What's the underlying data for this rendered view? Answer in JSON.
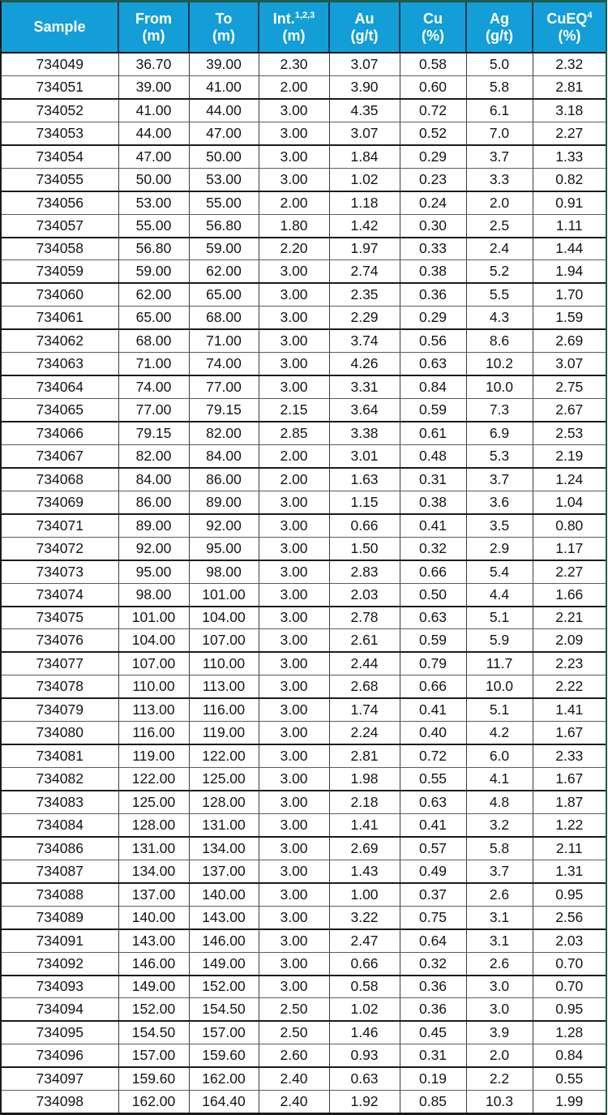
{
  "colors": {
    "header_bg": "#149ED8",
    "header_text": "#FFFFFF",
    "outer_border_top_right": "#1F5B46",
    "outer_border_bottom_left": "#1A1A1A",
    "grid_line": "#3C3C3C",
    "body_text": "#141414"
  },
  "chart_data": {
    "type": "table",
    "columns": [
      {
        "key": "sample",
        "label": "Sample",
        "sup": "",
        "unit": ""
      },
      {
        "key": "from-m",
        "label": "From",
        "sup": "",
        "unit": "(m)"
      },
      {
        "key": "to-m",
        "label": "To",
        "sup": "",
        "unit": "(m)"
      },
      {
        "key": "int-m",
        "label": "Int.",
        "sup": "1,2,3",
        "unit": "(m)"
      },
      {
        "key": "au-gpt",
        "label": "Au",
        "sup": "",
        "unit": "(g/t)"
      },
      {
        "key": "cu-pct",
        "label": "Cu",
        "sup": "",
        "unit": "(%)"
      },
      {
        "key": "ag-gpt",
        "label": "Ag",
        "sup": "",
        "unit": "(g/t)"
      },
      {
        "key": "cueq-pct",
        "label": "CuEQ",
        "sup": "4",
        "unit": "(%)"
      }
    ],
    "rows": [
      [
        "734049",
        "36.70",
        "39.00",
        "2.30",
        "3.07",
        "0.58",
        "5.0",
        "2.32"
      ],
      [
        "734051",
        "39.00",
        "41.00",
        "2.00",
        "3.90",
        "0.60",
        "5.8",
        "2.81"
      ],
      [
        "734052",
        "41.00",
        "44.00",
        "3.00",
        "4.35",
        "0.72",
        "6.1",
        "3.18"
      ],
      [
        "734053",
        "44.00",
        "47.00",
        "3.00",
        "3.07",
        "0.52",
        "7.0",
        "2.27"
      ],
      [
        "734054",
        "47.00",
        "50.00",
        "3.00",
        "1.84",
        "0.29",
        "3.7",
        "1.33"
      ],
      [
        "734055",
        "50.00",
        "53.00",
        "3.00",
        "1.02",
        "0.23",
        "3.3",
        "0.82"
      ],
      [
        "734056",
        "53.00",
        "55.00",
        "2.00",
        "1.18",
        "0.24",
        "2.0",
        "0.91"
      ],
      [
        "734057",
        "55.00",
        "56.80",
        "1.80",
        "1.42",
        "0.30",
        "2.5",
        "1.11"
      ],
      [
        "734058",
        "56.80",
        "59.00",
        "2.20",
        "1.97",
        "0.33",
        "2.4",
        "1.44"
      ],
      [
        "734059",
        "59.00",
        "62.00",
        "3.00",
        "2.74",
        "0.38",
        "5.2",
        "1.94"
      ],
      [
        "734060",
        "62.00",
        "65.00",
        "3.00",
        "2.35",
        "0.36",
        "5.5",
        "1.70"
      ],
      [
        "734061",
        "65.00",
        "68.00",
        "3.00",
        "2.29",
        "0.29",
        "4.3",
        "1.59"
      ],
      [
        "734062",
        "68.00",
        "71.00",
        "3.00",
        "3.74",
        "0.56",
        "8.6",
        "2.69"
      ],
      [
        "734063",
        "71.00",
        "74.00",
        "3.00",
        "4.26",
        "0.63",
        "10.2",
        "3.07"
      ],
      [
        "734064",
        "74.00",
        "77.00",
        "3.00",
        "3.31",
        "0.84",
        "10.0",
        "2.75"
      ],
      [
        "734065",
        "77.00",
        "79.15",
        "2.15",
        "3.64",
        "0.59",
        "7.3",
        "2.67"
      ],
      [
        "734066",
        "79.15",
        "82.00",
        "2.85",
        "3.38",
        "0.61",
        "6.9",
        "2.53"
      ],
      [
        "734067",
        "82.00",
        "84.00",
        "2.00",
        "3.01",
        "0.48",
        "5.3",
        "2.19"
      ],
      [
        "734068",
        "84.00",
        "86.00",
        "2.00",
        "1.63",
        "0.31",
        "3.7",
        "1.24"
      ],
      [
        "734069",
        "86.00",
        "89.00",
        "3.00",
        "1.15",
        "0.38",
        "3.6",
        "1.04"
      ],
      [
        "734071",
        "89.00",
        "92.00",
        "3.00",
        "0.66",
        "0.41",
        "3.5",
        "0.80"
      ],
      [
        "734072",
        "92.00",
        "95.00",
        "3.00",
        "1.50",
        "0.32",
        "2.9",
        "1.17"
      ],
      [
        "734073",
        "95.00",
        "98.00",
        "3.00",
        "2.83",
        "0.66",
        "5.4",
        "2.27"
      ],
      [
        "734074",
        "98.00",
        "101.00",
        "3.00",
        "2.03",
        "0.50",
        "4.4",
        "1.66"
      ],
      [
        "734075",
        "101.00",
        "104.00",
        "3.00",
        "2.78",
        "0.63",
        "5.1",
        "2.21"
      ],
      [
        "734076",
        "104.00",
        "107.00",
        "3.00",
        "2.61",
        "0.59",
        "5.9",
        "2.09"
      ],
      [
        "734077",
        "107.00",
        "110.00",
        "3.00",
        "2.44",
        "0.79",
        "11.7",
        "2.23"
      ],
      [
        "734078",
        "110.00",
        "113.00",
        "3.00",
        "2.68",
        "0.66",
        "10.0",
        "2.22"
      ],
      [
        "734079",
        "113.00",
        "116.00",
        "3.00",
        "1.74",
        "0.41",
        "5.1",
        "1.41"
      ],
      [
        "734080",
        "116.00",
        "119.00",
        "3.00",
        "2.24",
        "0.40",
        "4.2",
        "1.67"
      ],
      [
        "734081",
        "119.00",
        "122.00",
        "3.00",
        "2.81",
        "0.72",
        "6.0",
        "2.33"
      ],
      [
        "734082",
        "122.00",
        "125.00",
        "3.00",
        "1.98",
        "0.55",
        "4.1",
        "1.67"
      ],
      [
        "734083",
        "125.00",
        "128.00",
        "3.00",
        "2.18",
        "0.63",
        "4.8",
        "1.87"
      ],
      [
        "734084",
        "128.00",
        "131.00",
        "3.00",
        "1.41",
        "0.41",
        "3.2",
        "1.22"
      ],
      [
        "734086",
        "131.00",
        "134.00",
        "3.00",
        "2.69",
        "0.57",
        "5.8",
        "2.11"
      ],
      [
        "734087",
        "134.00",
        "137.00",
        "3.00",
        "1.43",
        "0.49",
        "3.7",
        "1.31"
      ],
      [
        "734088",
        "137.00",
        "140.00",
        "3.00",
        "1.00",
        "0.37",
        "2.6",
        "0.95"
      ],
      [
        "734089",
        "140.00",
        "143.00",
        "3.00",
        "3.22",
        "0.75",
        "3.1",
        "2.56"
      ],
      [
        "734091",
        "143.00",
        "146.00",
        "3.00",
        "2.47",
        "0.64",
        "3.1",
        "2.03"
      ],
      [
        "734092",
        "146.00",
        "149.00",
        "3.00",
        "0.66",
        "0.32",
        "2.6",
        "0.70"
      ],
      [
        "734093",
        "149.00",
        "152.00",
        "3.00",
        "0.58",
        "0.36",
        "3.0",
        "0.70"
      ],
      [
        "734094",
        "152.00",
        "154.50",
        "2.50",
        "1.02",
        "0.36",
        "3.0",
        "0.95"
      ],
      [
        "734095",
        "154.50",
        "157.00",
        "2.50",
        "1.46",
        "0.45",
        "3.9",
        "1.28"
      ],
      [
        "734096",
        "157.00",
        "159.60",
        "2.60",
        "0.93",
        "0.31",
        "2.0",
        "0.84"
      ],
      [
        "734097",
        "159.60",
        "162.00",
        "2.40",
        "0.63",
        "0.19",
        "2.2",
        "0.55"
      ],
      [
        "734098",
        "162.00",
        "164.40",
        "2.40",
        "1.92",
        "0.85",
        "10.3",
        "1.99"
      ]
    ]
  }
}
